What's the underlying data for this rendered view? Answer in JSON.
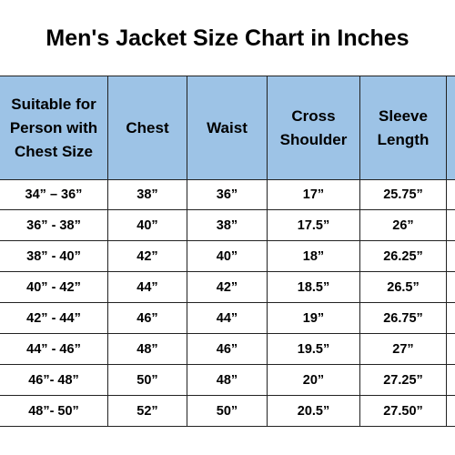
{
  "title": "Men's Jacket Size Chart in Inches",
  "table": {
    "header": [
      "Suitable for Person with Chest Size",
      "Chest",
      "Waist",
      "Cross Shoulder",
      "Sleeve Length"
    ],
    "rows": [
      [
        "34” – 36”",
        "38”",
        "36”",
        "17”",
        "25.75”"
      ],
      [
        "36” - 38”",
        "40”",
        "38”",
        "17.5”",
        "26”"
      ],
      [
        "38” - 40”",
        "42”",
        "40”",
        "18”",
        "26.25”"
      ],
      [
        "40” - 42”",
        "44”",
        "42”",
        "18.5”",
        "26.5”"
      ],
      [
        "42” - 44”",
        "46”",
        "44”",
        "19”",
        "26.75”"
      ],
      [
        "44” - 46”",
        "48”",
        "46”",
        "19.5”",
        "27”"
      ],
      [
        "46”- 48”",
        "50”",
        "48”",
        "20”",
        "27.25”"
      ],
      [
        "48”- 50”",
        "52”",
        "50”",
        "20.5”",
        "27.50”"
      ]
    ]
  }
}
